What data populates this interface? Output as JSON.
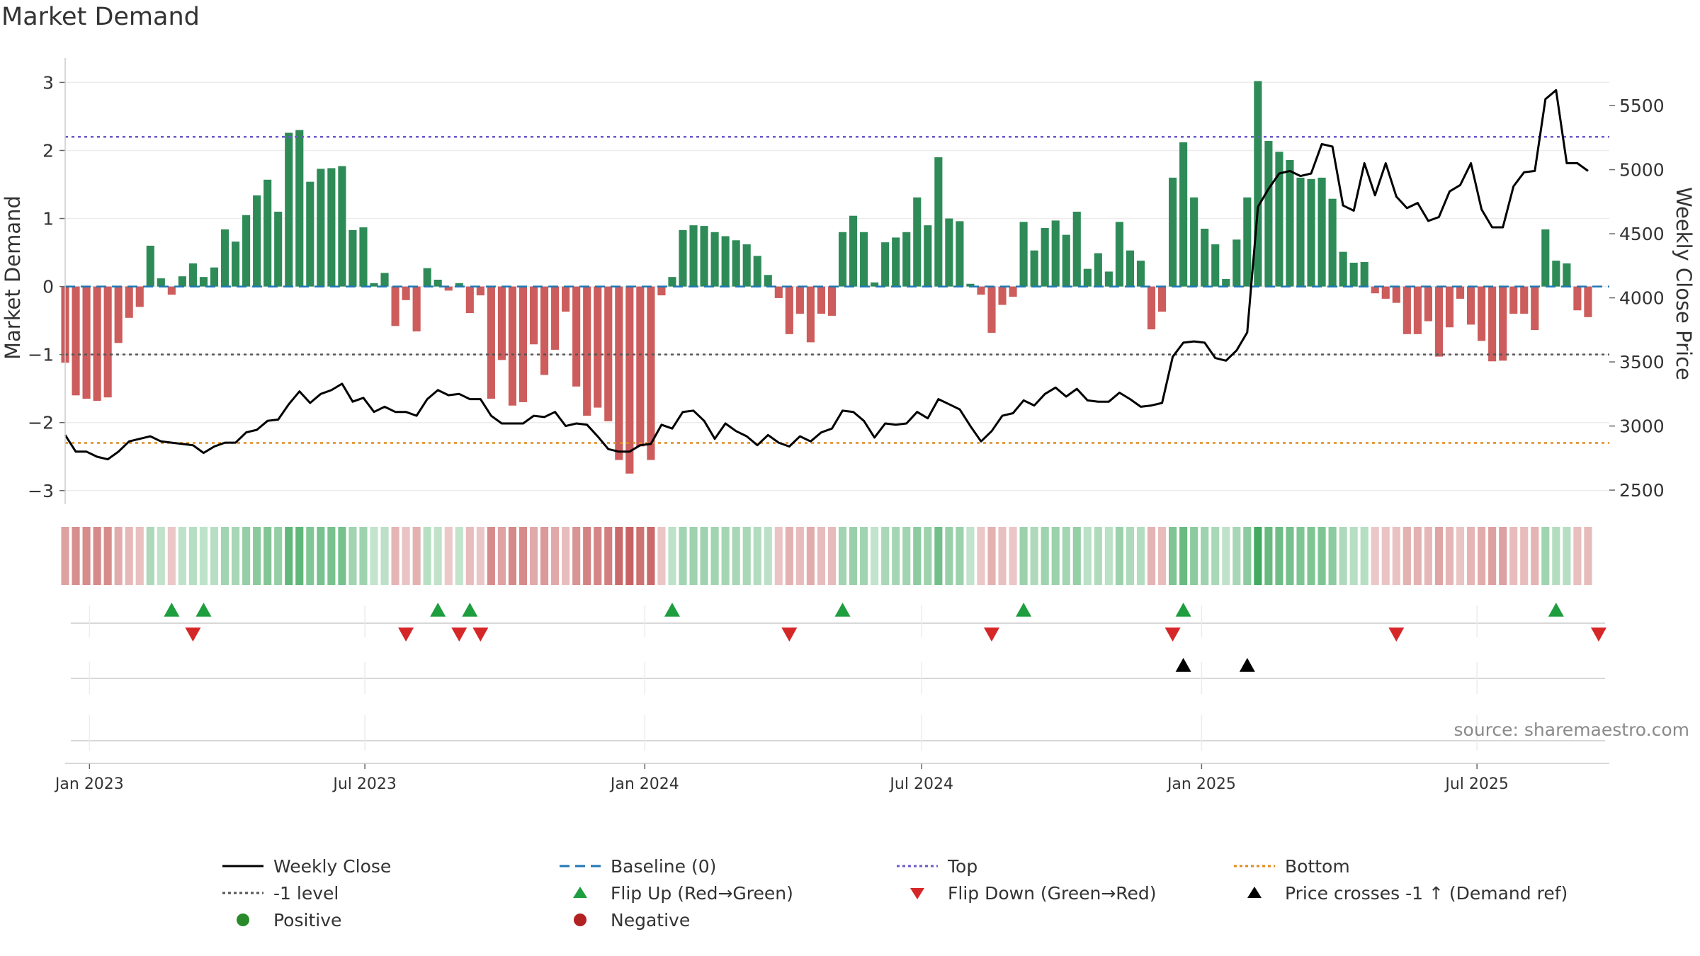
{
  "chart_data": {
    "type": "bar+line",
    "title": "Market Demand",
    "ylabel_left": "Market Demand",
    "ylabel_right": "Weekly Close Price",
    "source": "source: sharemaestro.com",
    "ylim_left": [
      -3.2,
      3.15
    ],
    "yticks_left": [
      3,
      2,
      1,
      0,
      -1,
      -2,
      -3
    ],
    "ytick_labels_left": [
      "3",
      "2",
      "1",
      "0",
      "−1",
      "−2",
      "−3"
    ],
    "ylim_right": [
      2390,
      5760
    ],
    "yticks_right": [
      5500,
      5000,
      4500,
      4000,
      3500,
      3000,
      2500
    ],
    "ytick_labels_right": [
      "5500",
      "5000",
      "4500",
      "4000",
      "3500",
      "3000",
      "2500"
    ],
    "x_start_date": "2022-12-16",
    "x_end_date": "2025-09-26",
    "bar_start_date": "2022-12-16",
    "x_tick_dates": [
      "2023-01-01",
      "2023-07-01",
      "2024-01-01",
      "2024-07-01",
      "2025-01-01",
      "2025-07-01"
    ],
    "x_tick_labels": [
      "Jan 2023",
      "Jul 2023",
      "Jan 2024",
      "Jul 2024",
      "Jan 2025",
      "Jul 2025"
    ],
    "levels": {
      "top": 2.2,
      "bottom": -2.3,
      "minus_one": -1.0,
      "baseline": 0
    },
    "demand": [
      -1.12,
      -1.6,
      -1.65,
      -1.68,
      -1.63,
      -0.83,
      -0.46,
      -0.3,
      0.6,
      0.12,
      -0.12,
      0.15,
      0.34,
      0.14,
      0.28,
      0.84,
      0.66,
      1.05,
      1.34,
      1.57,
      1.1,
      2.26,
      2.3,
      1.54,
      1.73,
      1.74,
      1.77,
      0.83,
      0.87,
      0.05,
      0.2,
      -0.58,
      -0.2,
      -0.66,
      0.27,
      0.1,
      -0.06,
      0.05,
      -0.39,
      -0.13,
      -1.65,
      -1.08,
      -1.75,
      -1.7,
      -0.85,
      -1.3,
      -0.93,
      -0.37,
      -1.47,
      -1.9,
      -1.78,
      -1.98,
      -2.55,
      -2.75,
      -2.35,
      -2.55,
      -0.13,
      0.14,
      0.83,
      0.9,
      0.89,
      0.8,
      0.74,
      0.68,
      0.62,
      0.45,
      0.17,
      -0.17,
      -0.7,
      -0.4,
      -0.82,
      -0.4,
      -0.43,
      0.8,
      1.04,
      0.8,
      0.06,
      0.65,
      0.72,
      0.8,
      1.31,
      0.9,
      1.9,
      1.0,
      0.96,
      0.04,
      -0.12,
      -0.68,
      -0.27,
      -0.15,
      0.95,
      0.53,
      0.86,
      0.97,
      0.76,
      1.1,
      0.26,
      0.49,
      0.22,
      0.95,
      0.53,
      0.38,
      -0.63,
      -0.37,
      1.6,
      2.12,
      1.31,
      0.85,
      0.62,
      0.11,
      0.69,
      1.31,
      3.02,
      2.14,
      1.98,
      1.86,
      1.6,
      1.58,
      1.6,
      1.29,
      0.51,
      0.35,
      0.36,
      -0.1,
      -0.18,
      -0.24,
      -0.7,
      -0.7,
      -0.51,
      -1.03,
      -0.6,
      -0.18,
      -0.56,
      -0.8,
      -1.1,
      -1.09,
      -0.4,
      -0.4,
      -0.64,
      0.84,
      0.38,
      0.34,
      -0.35,
      -0.45
    ],
    "close": [
      2930,
      2800,
      2800,
      2760,
      2740,
      2800,
      2880,
      2900,
      2920,
      2880,
      2870,
      2860,
      2850,
      2790,
      2840,
      2870,
      2870,
      2950,
      2970,
      3040,
      3050,
      3170,
      3270,
      3180,
      3250,
      3280,
      3330,
      3190,
      3220,
      3110,
      3150,
      3110,
      3110,
      3080,
      3210,
      3280,
      3240,
      3250,
      3210,
      3210,
      3080,
      3020,
      3020,
      3020,
      3080,
      3070,
      3110,
      3000,
      3020,
      3010,
      2920,
      2820,
      2800,
      2800,
      2850,
      2860,
      3010,
      2980,
      3110,
      3120,
      3040,
      2900,
      3020,
      2960,
      2920,
      2850,
      2930,
      2870,
      2840,
      2920,
      2880,
      2950,
      2980,
      3120,
      3110,
      3040,
      2910,
      3020,
      3010,
      3020,
      3110,
      3060,
      3210,
      3170,
      3130,
      3000,
      2880,
      2960,
      3080,
      3100,
      3200,
      3160,
      3250,
      3300,
      3230,
      3290,
      3200,
      3190,
      3190,
      3260,
      3210,
      3150,
      3160,
      3180,
      3540,
      3650,
      3660,
      3650,
      3530,
      3510,
      3590,
      3730,
      4710,
      4850,
      4970,
      4990,
      4950,
      4970,
      5200,
      5180,
      4720,
      4680,
      5050,
      4800,
      5050,
      4790,
      4700,
      4740,
      4600,
      4630,
      4830,
      4880,
      5050,
      4690,
      4550,
      4550,
      4870,
      4980,
      4990,
      5550,
      5620,
      5050,
      5050,
      4990
    ],
    "flip_up_dates": [
      "2023-02-24",
      "2023-03-17",
      "2023-08-18",
      "2023-09-08",
      "2024-01-19",
      "2024-05-10",
      "2024-09-06",
      "2024-12-20",
      "2025-08-22"
    ],
    "flip_down_dates": [
      "2023-03-10",
      "2023-07-28",
      "2023-09-01",
      "2023-09-15",
      "2024-04-05",
      "2024-08-16",
      "2024-12-13",
      "2025-05-09",
      "2025-09-19"
    ],
    "price_cross_dates": [
      "2024-12-20",
      "2025-01-31"
    ],
    "legend": [
      {
        "label": "Weekly Close",
        "symbol": "solid-line",
        "color": "#000000"
      },
      {
        "label": "Baseline (0)",
        "symbol": "dashed-line",
        "color": "#1f77b4"
      },
      {
        "label": "Top",
        "symbol": "dotted-line",
        "color": "#6a5acd"
      },
      {
        "label": "Bottom",
        "symbol": "dotted-line",
        "color": "#e08a1e"
      },
      {
        "label": "-1 level",
        "symbol": "dotted-line",
        "color": "#555555"
      },
      {
        "label": "Flip Up (Red→Green)",
        "symbol": "triangle-up",
        "color": "#1f9e3f"
      },
      {
        "label": "Flip Down (Green→Red)",
        "symbol": "triangle-down",
        "color": "#d62728"
      },
      {
        "label": "Price crosses -1 ↑ (Demand ref)",
        "symbol": "triangle-up",
        "color": "#000000"
      },
      {
        "label": "Positive",
        "symbol": "dot",
        "color": "#2a8a2a"
      },
      {
        "label": "Negative",
        "symbol": "dot",
        "color": "#b22222"
      }
    ],
    "colors": {
      "positive_bar": "#2e8b57",
      "negative_bar": "#cd5c5c",
      "line": "#000000"
    }
  }
}
